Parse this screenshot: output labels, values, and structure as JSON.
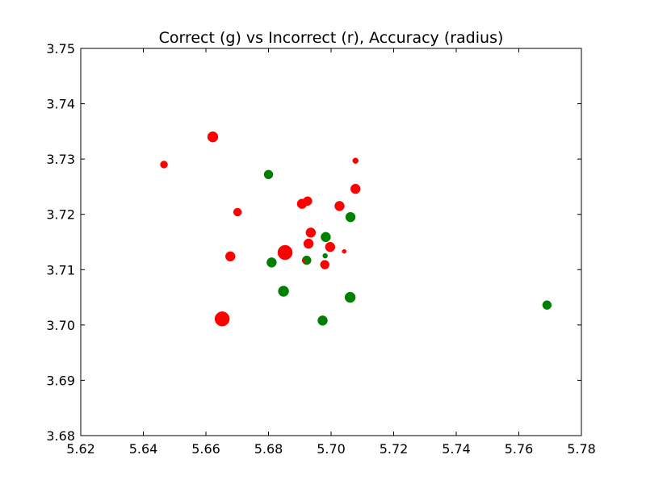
{
  "chart_data": {
    "type": "scatter",
    "title": "Correct (g) vs Incorrect (r), Accuracy (radius)",
    "xlabel": "",
    "ylabel": "",
    "xlim": [
      5.62,
      5.78
    ],
    "ylim": [
      3.68,
      3.75
    ],
    "x_ticks": [
      5.62,
      5.64,
      5.66,
      5.68,
      5.7,
      5.72,
      5.74,
      5.76,
      5.78
    ],
    "x_tick_labels": [
      "5.62",
      "5.64",
      "5.66",
      "5.68",
      "5.70",
      "5.72",
      "5.74",
      "5.76",
      "5.78"
    ],
    "y_ticks": [
      3.68,
      3.69,
      3.7,
      3.71,
      3.72,
      3.73,
      3.74,
      3.75
    ],
    "y_tick_labels": [
      "3.68",
      "3.69",
      "3.70",
      "3.71",
      "3.72",
      "3.73",
      "3.74",
      "3.75"
    ],
    "grid": false,
    "colors": {
      "correct": "#008000",
      "incorrect": "#ff0000"
    },
    "series": [
      {
        "color_key": "correct",
        "points": [
          {
            "x": 5.68,
            "y": 3.7272,
            "r": 5.5
          },
          {
            "x": 5.7062,
            "y": 3.7195,
            "r": 6
          },
          {
            "x": 5.6983,
            "y": 3.7159,
            "r": 6
          },
          {
            "x": 5.6981,
            "y": 3.7125,
            "r": 3
          },
          {
            "x": 5.681,
            "y": 3.7113,
            "r": 6
          },
          {
            "x": 5.6922,
            "y": 3.7117,
            "r": 5.5
          },
          {
            "x": 5.6848,
            "y": 3.7061,
            "r": 6.5
          },
          {
            "x": 5.7061,
            "y": 3.705,
            "r": 6.5
          },
          {
            "x": 5.6973,
            "y": 3.7008,
            "r": 6
          },
          {
            "x": 5.769,
            "y": 3.7036,
            "r": 5.5
          }
        ]
      },
      {
        "color_key": "incorrect",
        "points": [
          {
            "x": 5.6622,
            "y": 3.734,
            "r": 6.5
          },
          {
            "x": 5.6466,
            "y": 3.729,
            "r": 4.5
          },
          {
            "x": 5.7078,
            "y": 3.7297,
            "r": 3.5
          },
          {
            "x": 5.6701,
            "y": 3.7204,
            "r": 5
          },
          {
            "x": 5.6907,
            "y": 3.7219,
            "r": 6
          },
          {
            "x": 5.6925,
            "y": 3.7224,
            "r": 5.5
          },
          {
            "x": 5.7027,
            "y": 3.7215,
            "r": 6
          },
          {
            "x": 5.7078,
            "y": 3.7246,
            "r": 6
          },
          {
            "x": 5.6935,
            "y": 3.7167,
            "r": 6
          },
          {
            "x": 5.6928,
            "y": 3.7147,
            "r": 6
          },
          {
            "x": 5.6997,
            "y": 3.7141,
            "r": 6
          },
          {
            "x": 5.7042,
            "y": 3.7133,
            "r": 2.5
          },
          {
            "x": 5.6853,
            "y": 3.7131,
            "r": 9
          },
          {
            "x": 5.6678,
            "y": 3.7124,
            "r": 6
          },
          {
            "x": 5.698,
            "y": 3.7109,
            "r": 5.5
          },
          {
            "x": 5.6913,
            "y": 3.7116,
            "r": 2
          },
          {
            "x": 5.6652,
            "y": 3.7011,
            "r": 9
          }
        ]
      }
    ]
  }
}
